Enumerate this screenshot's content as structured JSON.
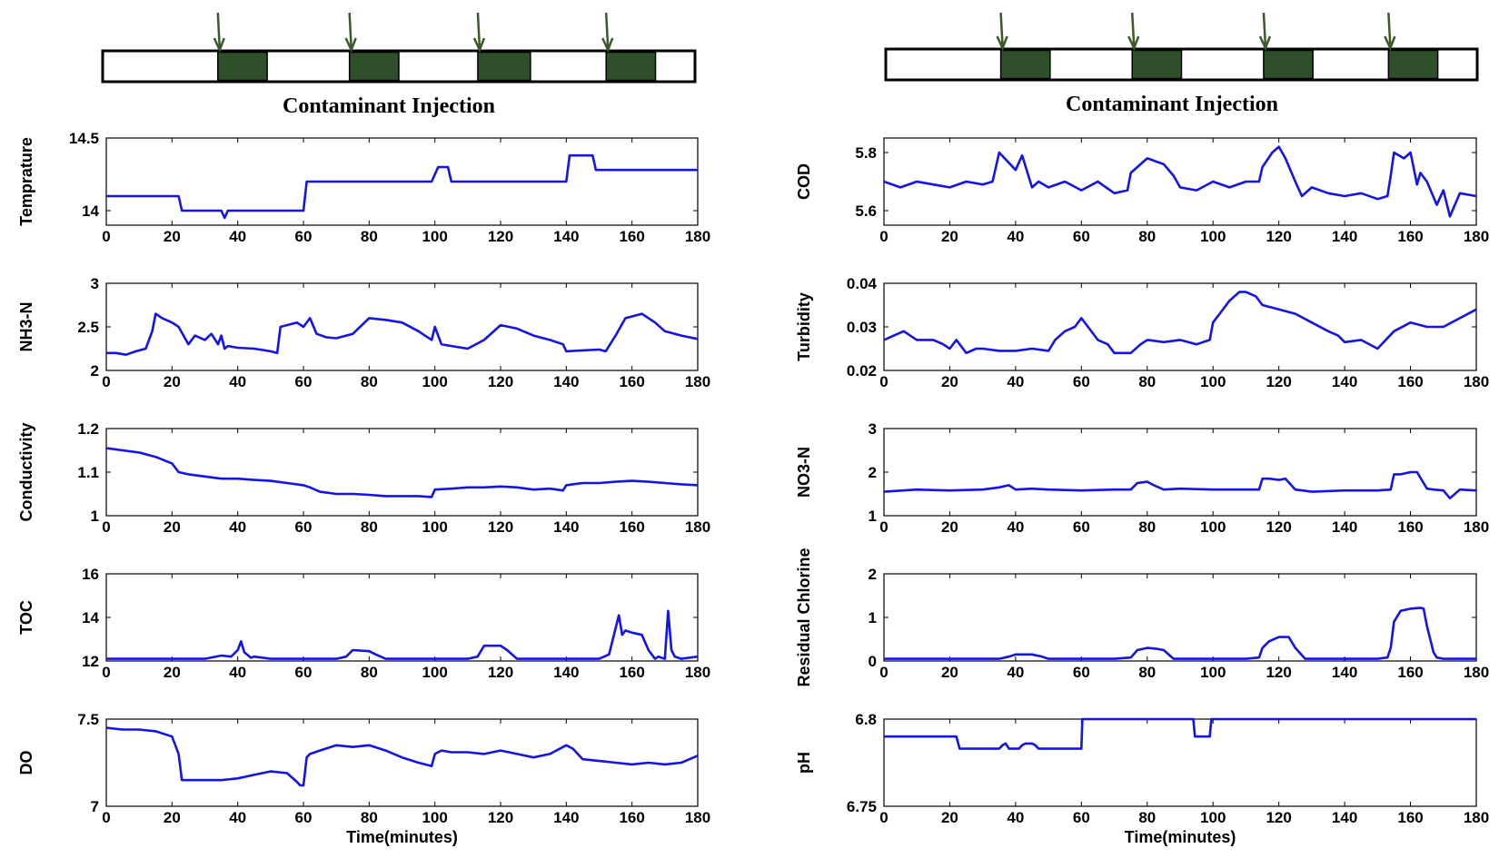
{
  "colors": {
    "line": "#1414e6",
    "injection_fill": "#2f4f2a",
    "arrow": "#3a5a2a",
    "axis": "#000000"
  },
  "injection_banners": [
    {
      "title": "Contaminant Injection",
      "time_range": [
        0,
        180
      ],
      "injections": [
        [
          35,
          50
        ],
        [
          75,
          90
        ],
        [
          114,
          130
        ],
        [
          153,
          168
        ]
      ]
    },
    {
      "title": "Contaminant Injection",
      "time_range": [
        0,
        180
      ],
      "injections": [
        [
          35,
          50
        ],
        [
          75,
          90
        ],
        [
          115,
          130
        ],
        [
          153,
          168
        ]
      ]
    }
  ],
  "chart_data": [
    {
      "id": "temperature",
      "type": "line",
      "column": 0,
      "row": 0,
      "ylabel": "Temprature",
      "xlabel": "",
      "xlim": [
        0,
        180
      ],
      "ylim": [
        13.9,
        14.5
      ],
      "yticks": [
        14,
        14.5
      ],
      "series": [
        {
          "name": "Temprature",
          "x": [
            0,
            22,
            23,
            35,
            36,
            37,
            60,
            61,
            99,
            100,
            101,
            104,
            105,
            140,
            141,
            148,
            149,
            180
          ],
          "values": [
            14.1,
            14.1,
            14.0,
            14.0,
            13.95,
            14.0,
            14.0,
            14.2,
            14.2,
            14.25,
            14.3,
            14.3,
            14.2,
            14.2,
            14.38,
            14.38,
            14.28,
            14.28
          ]
        }
      ]
    },
    {
      "id": "nh3n",
      "type": "line",
      "column": 0,
      "row": 1,
      "ylabel": "NH3-N",
      "xlabel": "",
      "xlim": [
        0,
        180
      ],
      "ylim": [
        2,
        3
      ],
      "yticks": [
        2,
        2.5,
        3
      ],
      "series": [
        {
          "name": "NH3-N",
          "x": [
            0,
            3,
            6,
            9,
            12,
            14,
            15,
            17,
            20,
            22,
            25,
            27,
            30,
            32,
            34,
            35,
            36,
            37,
            40,
            45,
            50,
            52,
            53,
            55,
            58,
            60,
            62,
            64,
            67,
            70,
            75,
            80,
            85,
            90,
            95,
            99,
            100,
            102,
            105,
            110,
            115,
            120,
            125,
            130,
            135,
            139,
            140,
            145,
            150,
            152,
            155,
            158,
            160,
            163,
            167,
            170,
            175,
            180
          ],
          "values": [
            2.2,
            2.2,
            2.18,
            2.22,
            2.25,
            2.45,
            2.65,
            2.6,
            2.55,
            2.5,
            2.3,
            2.4,
            2.35,
            2.42,
            2.3,
            2.4,
            2.25,
            2.28,
            2.26,
            2.25,
            2.22,
            2.2,
            2.5,
            2.52,
            2.55,
            2.5,
            2.6,
            2.42,
            2.38,
            2.37,
            2.42,
            2.6,
            2.58,
            2.55,
            2.45,
            2.35,
            2.5,
            2.3,
            2.28,
            2.25,
            2.35,
            2.52,
            2.48,
            2.4,
            2.35,
            2.3,
            2.22,
            2.23,
            2.24,
            2.22,
            2.4,
            2.6,
            2.62,
            2.65,
            2.55,
            2.45,
            2.4,
            2.36
          ]
        }
      ]
    },
    {
      "id": "conductivity",
      "type": "line",
      "column": 0,
      "row": 2,
      "ylabel": "Conductivity",
      "xlabel": "",
      "xlim": [
        0,
        180
      ],
      "ylim": [
        1,
        1.2
      ],
      "yticks": [
        1,
        1.1,
        1.2
      ],
      "series": [
        {
          "name": "Conductivity",
          "x": [
            0,
            5,
            10,
            15,
            20,
            22,
            25,
            30,
            35,
            40,
            45,
            50,
            55,
            60,
            62,
            65,
            70,
            75,
            80,
            85,
            90,
            95,
            99,
            100,
            105,
            110,
            115,
            120,
            125,
            130,
            135,
            139,
            140,
            145,
            150,
            155,
            160,
            165,
            170,
            175,
            180
          ],
          "values": [
            1.155,
            1.15,
            1.145,
            1.135,
            1.12,
            1.1,
            1.095,
            1.09,
            1.085,
            1.085,
            1.082,
            1.08,
            1.075,
            1.07,
            1.065,
            1.055,
            1.05,
            1.05,
            1.048,
            1.045,
            1.045,
            1.045,
            1.043,
            1.06,
            1.062,
            1.065,
            1.065,
            1.067,
            1.065,
            1.06,
            1.062,
            1.058,
            1.07,
            1.075,
            1.075,
            1.078,
            1.08,
            1.078,
            1.075,
            1.072,
            1.07
          ]
        }
      ]
    },
    {
      "id": "toc",
      "type": "line",
      "column": 0,
      "row": 3,
      "ylabel": "TOC",
      "xlabel": "",
      "xlim": [
        0,
        180
      ],
      "ylim": [
        12,
        16
      ],
      "yticks": [
        12,
        14,
        16
      ],
      "series": [
        {
          "name": "TOC",
          "x": [
            0,
            10,
            20,
            30,
            35,
            38,
            40,
            41,
            42,
            44,
            45,
            50,
            60,
            70,
            73,
            75,
            80,
            82,
            85,
            90,
            100,
            110,
            113,
            115,
            120,
            122,
            125,
            130,
            140,
            150,
            153,
            155,
            156,
            157,
            158,
            160,
            163,
            165,
            166,
            167,
            168,
            170,
            171,
            172,
            173,
            175,
            180
          ],
          "values": [
            12.1,
            12.1,
            12.1,
            12.1,
            12.25,
            12.2,
            12.5,
            12.9,
            12.4,
            12.15,
            12.2,
            12.1,
            12.1,
            12.1,
            12.2,
            12.5,
            12.45,
            12.3,
            12.1,
            12.1,
            12.1,
            12.1,
            12.2,
            12.7,
            12.7,
            12.5,
            12.1,
            12.1,
            12.1,
            12.1,
            12.3,
            13.5,
            14.1,
            13.2,
            13.4,
            13.3,
            13.2,
            12.5,
            12.3,
            12.1,
            12.2,
            12.1,
            14.3,
            12.5,
            12.2,
            12.1,
            12.2
          ]
        }
      ]
    },
    {
      "id": "do",
      "type": "line",
      "column": 0,
      "row": 4,
      "ylabel": "DO",
      "xlabel": "Time(minutes)",
      "xlim": [
        0,
        180
      ],
      "ylim": [
        7,
        7.5
      ],
      "yticks": [
        7,
        7.5
      ],
      "series": [
        {
          "name": "DO",
          "x": [
            0,
            5,
            10,
            15,
            20,
            22,
            23,
            25,
            30,
            35,
            40,
            45,
            50,
            55,
            58,
            59,
            60,
            61,
            62,
            65,
            70,
            75,
            80,
            85,
            90,
            95,
            99,
            100,
            102,
            105,
            110,
            115,
            120,
            125,
            130,
            135,
            140,
            142,
            145,
            150,
            155,
            160,
            165,
            170,
            175,
            180
          ],
          "values": [
            7.45,
            7.44,
            7.44,
            7.43,
            7.4,
            7.3,
            7.15,
            7.15,
            7.15,
            7.15,
            7.16,
            7.18,
            7.2,
            7.19,
            7.14,
            7.12,
            7.12,
            7.28,
            7.3,
            7.32,
            7.35,
            7.34,
            7.35,
            7.32,
            7.28,
            7.25,
            7.23,
            7.3,
            7.32,
            7.31,
            7.31,
            7.3,
            7.32,
            7.3,
            7.28,
            7.3,
            7.35,
            7.33,
            7.27,
            7.26,
            7.25,
            7.24,
            7.25,
            7.24,
            7.25,
            7.29
          ]
        }
      ]
    },
    {
      "id": "cod",
      "type": "line",
      "column": 1,
      "row": 0,
      "ylabel": "COD",
      "xlabel": "",
      "xlim": [
        0,
        180
      ],
      "ylim": [
        5.55,
        5.85
      ],
      "yticks": [
        5.6,
        5.8
      ],
      "series": [
        {
          "name": "COD",
          "x": [
            0,
            5,
            10,
            15,
            20,
            25,
            30,
            33,
            34,
            35,
            40,
            42,
            45,
            47,
            50,
            55,
            60,
            65,
            70,
            74,
            75,
            80,
            85,
            88,
            90,
            95,
            100,
            105,
            110,
            114,
            115,
            118,
            120,
            122,
            125,
            127,
            130,
            135,
            140,
            145,
            150,
            153,
            154,
            155,
            158,
            160,
            162,
            163,
            165,
            168,
            170,
            172,
            175,
            180
          ],
          "values": [
            5.7,
            5.68,
            5.7,
            5.69,
            5.68,
            5.7,
            5.69,
            5.7,
            5.75,
            5.8,
            5.74,
            5.79,
            5.68,
            5.7,
            5.68,
            5.7,
            5.67,
            5.7,
            5.66,
            5.67,
            5.73,
            5.78,
            5.76,
            5.72,
            5.68,
            5.67,
            5.7,
            5.68,
            5.7,
            5.7,
            5.75,
            5.8,
            5.82,
            5.78,
            5.7,
            5.65,
            5.68,
            5.66,
            5.65,
            5.66,
            5.64,
            5.65,
            5.72,
            5.8,
            5.78,
            5.8,
            5.69,
            5.73,
            5.7,
            5.62,
            5.67,
            5.58,
            5.66,
            5.65
          ]
        }
      ]
    },
    {
      "id": "turbidity",
      "type": "line",
      "column": 1,
      "row": 1,
      "ylabel": "Turbidity",
      "xlabel": "",
      "xlim": [
        0,
        180
      ],
      "ylim": [
        0.02,
        0.04
      ],
      "yticks": [
        0.02,
        0.03,
        0.04
      ],
      "series": [
        {
          "name": "Turbidity",
          "x": [
            0,
            3,
            6,
            10,
            15,
            18,
            20,
            22,
            25,
            28,
            30,
            35,
            40,
            45,
            50,
            52,
            55,
            58,
            60,
            62,
            65,
            68,
            70,
            75,
            78,
            80,
            85,
            90,
            95,
            99,
            100,
            102,
            105,
            108,
            110,
            113,
            115,
            120,
            125,
            130,
            135,
            138,
            140,
            145,
            150,
            155,
            160,
            165,
            170,
            175,
            180
          ],
          "values": [
            0.027,
            0.028,
            0.029,
            0.027,
            0.027,
            0.026,
            0.025,
            0.027,
            0.024,
            0.025,
            0.025,
            0.0245,
            0.0245,
            0.025,
            0.0245,
            0.027,
            0.029,
            0.03,
            0.032,
            0.03,
            0.027,
            0.026,
            0.024,
            0.024,
            0.026,
            0.027,
            0.0265,
            0.027,
            0.026,
            0.027,
            0.031,
            0.033,
            0.036,
            0.038,
            0.038,
            0.037,
            0.035,
            0.034,
            0.033,
            0.031,
            0.029,
            0.028,
            0.0265,
            0.027,
            0.025,
            0.029,
            0.031,
            0.03,
            0.03,
            0.032,
            0.034
          ]
        }
      ]
    },
    {
      "id": "no3n",
      "type": "line",
      "column": 1,
      "row": 2,
      "ylabel": "NO3-N",
      "xlabel": "",
      "xlim": [
        0,
        180
      ],
      "ylim": [
        1,
        3
      ],
      "yticks": [
        1,
        2,
        3
      ],
      "series": [
        {
          "name": "NO3-N",
          "x": [
            0,
            10,
            20,
            30,
            35,
            38,
            40,
            45,
            50,
            60,
            70,
            75,
            77,
            80,
            82,
            85,
            90,
            100,
            110,
            114,
            115,
            117,
            120,
            122,
            125,
            130,
            140,
            150,
            154,
            155,
            157,
            160,
            162,
            165,
            167,
            170,
            172,
            175,
            180
          ],
          "values": [
            1.55,
            1.6,
            1.58,
            1.6,
            1.65,
            1.7,
            1.6,
            1.62,
            1.6,
            1.58,
            1.6,
            1.6,
            1.75,
            1.78,
            1.7,
            1.6,
            1.62,
            1.6,
            1.6,
            1.6,
            1.85,
            1.85,
            1.82,
            1.85,
            1.6,
            1.55,
            1.58,
            1.58,
            1.6,
            1.95,
            1.95,
            2.0,
            2.0,
            1.62,
            1.6,
            1.58,
            1.4,
            1.6,
            1.58
          ]
        }
      ]
    },
    {
      "id": "residual_chlorine",
      "type": "line",
      "column": 1,
      "row": 3,
      "ylabel": "Residual Chlorine",
      "xlabel": "",
      "xlim": [
        0,
        180
      ],
      "ylim": [
        0,
        2
      ],
      "yticks": [
        0,
        1,
        2
      ],
      "series": [
        {
          "name": "Residual Chlorine",
          "x": [
            0,
            30,
            35,
            38,
            40,
            45,
            48,
            50,
            53,
            70,
            75,
            77,
            80,
            83,
            85,
            88,
            110,
            114,
            115,
            117,
            120,
            123,
            125,
            128,
            150,
            153,
            154,
            155,
            157,
            160,
            163,
            164,
            165,
            167,
            168,
            170,
            180
          ],
          "values": [
            0.05,
            0.05,
            0.05,
            0.1,
            0.15,
            0.15,
            0.1,
            0.05,
            0.05,
            0.05,
            0.08,
            0.25,
            0.3,
            0.28,
            0.25,
            0.05,
            0.05,
            0.08,
            0.3,
            0.45,
            0.55,
            0.55,
            0.3,
            0.05,
            0.05,
            0.08,
            0.3,
            0.9,
            1.15,
            1.2,
            1.22,
            1.2,
            0.8,
            0.2,
            0.08,
            0.05,
            0.05
          ]
        }
      ]
    },
    {
      "id": "ph",
      "type": "line",
      "column": 1,
      "row": 4,
      "ylabel": "pH",
      "xlabel": "Time(minutes)",
      "xlim": [
        0,
        180
      ],
      "ylim": [
        6.75,
        6.8
      ],
      "yticks": [
        6.75,
        6.8
      ],
      "series": [
        {
          "name": "pH",
          "x": [
            0,
            22,
            23,
            35,
            36,
            37,
            38,
            40,
            41,
            42,
            43,
            44,
            45,
            46,
            47,
            48,
            60,
            60.3,
            61,
            94,
            94.5,
            95,
            99,
            99.5,
            100,
            180
          ],
          "values": [
            6.79,
            6.79,
            6.783,
            6.783,
            6.785,
            6.786,
            6.783,
            6.783,
            6.783,
            6.785,
            6.786,
            6.786,
            6.786,
            6.785,
            6.783,
            6.783,
            6.783,
            6.8,
            6.8,
            6.8,
            6.79,
            6.79,
            6.79,
            6.8,
            6.8,
            6.8
          ]
        }
      ]
    }
  ]
}
